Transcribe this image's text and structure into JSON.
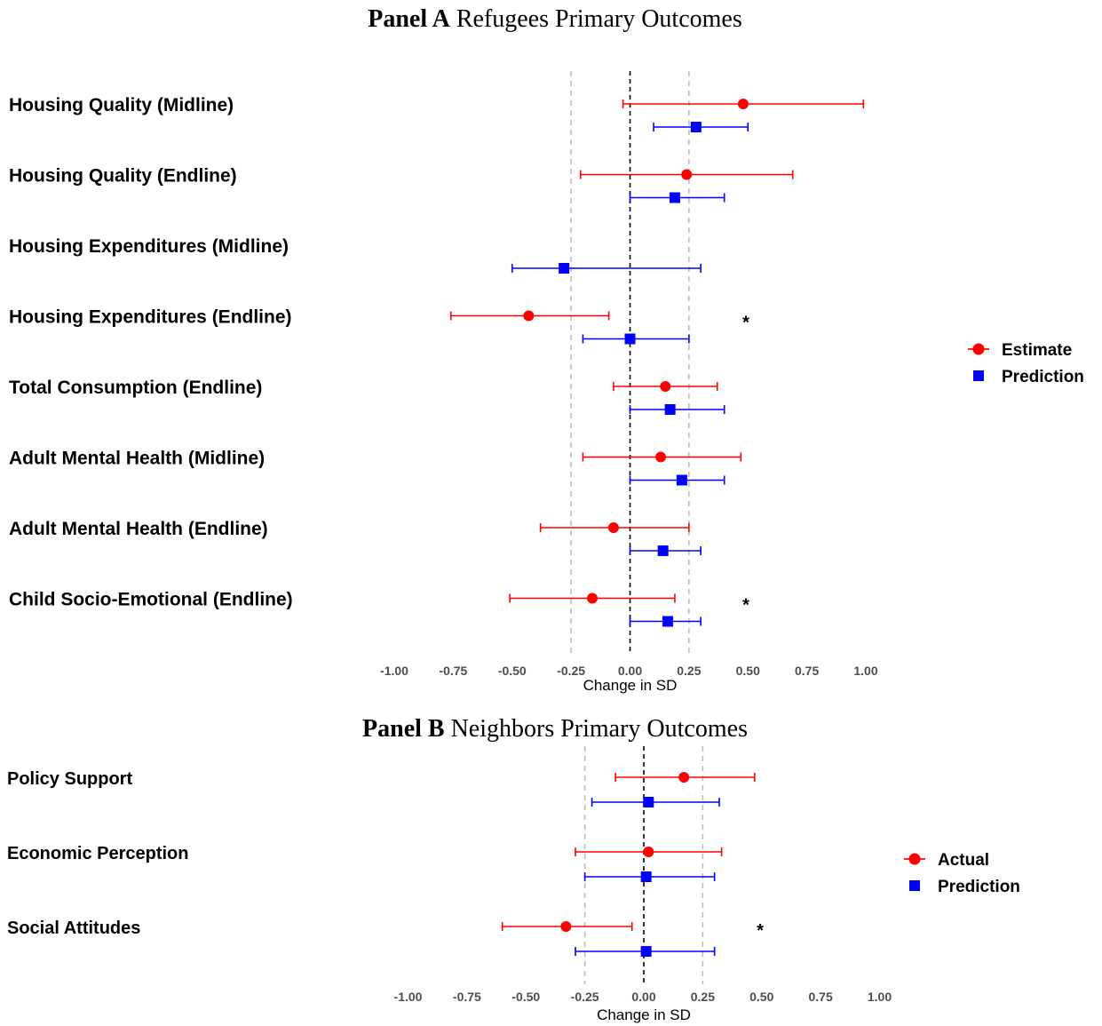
{
  "chart_data": [
    {
      "type": "forest",
      "title_bold": "Panel A",
      "title": "Refugees Primary Outcomes",
      "xlabel": "Change in SD",
      "xlim": [
        -1.0,
        1.0
      ],
      "xticks": [
        "-1.00",
        "-0.75",
        "-0.50",
        "-0.25",
        "0.00",
        "0.25",
        "0.50",
        "0.75",
        "1.00"
      ],
      "reference_lines": {
        "zero": 0.0,
        "dashed_grey": [
          -0.25,
          0.25
        ]
      },
      "grid": false,
      "legend_position": "right",
      "categories": [
        "Housing Quality (Midline)",
        "Housing Quality (Endline)",
        "Housing Expenditures (Midline)",
        "Housing Expenditures (Endline)",
        "Total Consumption (Endline)",
        "Adult Mental Health (Midline)",
        "Adult Mental Health (Endline)",
        "Child Socio-Emotional (Endline)"
      ],
      "series": [
        {
          "name": "Estimate",
          "color": "#ff0000",
          "marker": "circle",
          "values": [
            {
              "est": 0.48,
              "lo": -0.03,
              "hi": 0.99
            },
            {
              "est": 0.24,
              "lo": -0.21,
              "hi": 0.69
            },
            null,
            {
              "est": -0.43,
              "lo": -0.76,
              "hi": -0.09
            },
            {
              "est": 0.15,
              "lo": -0.07,
              "hi": 0.37
            },
            {
              "est": 0.13,
              "lo": -0.2,
              "hi": 0.47
            },
            {
              "est": -0.07,
              "lo": -0.38,
              "hi": 0.25
            },
            {
              "est": -0.16,
              "lo": -0.51,
              "hi": 0.19
            }
          ]
        },
        {
          "name": "Prediction",
          "color": "#0000ff",
          "marker": "square",
          "values": [
            {
              "est": 0.28,
              "lo": 0.1,
              "hi": 0.5
            },
            {
              "est": 0.19,
              "lo": 0.0,
              "hi": 0.4
            },
            {
              "est": -0.28,
              "lo": -0.5,
              "hi": 0.3
            },
            {
              "est": 0.0,
              "lo": -0.2,
              "hi": 0.25
            },
            {
              "est": 0.17,
              "lo": 0.0,
              "hi": 0.4
            },
            {
              "est": 0.22,
              "lo": 0.0,
              "hi": 0.4
            },
            {
              "est": 0.14,
              "lo": 0.0,
              "hi": 0.3
            },
            {
              "est": 0.16,
              "lo": 0.0,
              "hi": 0.3
            }
          ]
        }
      ],
      "annotations": [
        {
          "category_index": 3,
          "text": "*",
          "x": 0.5
        },
        {
          "category_index": 7,
          "text": "*",
          "x": 0.5
        }
      ]
    },
    {
      "type": "forest",
      "title_bold": "Panel B",
      "title": "Neighbors Primary Outcomes",
      "xlabel": "Change in SD",
      "xlim": [
        -1.0,
        1.0
      ],
      "xticks": [
        "-1.00",
        "-0.75",
        "-0.50",
        "-0.25",
        "0.00",
        "0.25",
        "0.50",
        "0.75",
        "1.00"
      ],
      "reference_lines": {
        "zero": 0.0,
        "dashed_grey": [
          -0.25,
          0.25
        ]
      },
      "grid": false,
      "legend_position": "right",
      "categories": [
        "Policy Support",
        "Economic Perception",
        "Social Attitudes"
      ],
      "series": [
        {
          "name": "Actual",
          "color": "#ff0000",
          "marker": "circle",
          "values": [
            {
              "est": 0.17,
              "lo": -0.12,
              "hi": 0.47
            },
            {
              "est": 0.02,
              "lo": -0.29,
              "hi": 0.33
            },
            {
              "est": -0.33,
              "lo": -0.6,
              "hi": -0.05
            }
          ]
        },
        {
          "name": "Prediction",
          "color": "#0000ff",
          "marker": "square",
          "values": [
            {
              "est": 0.02,
              "lo": -0.22,
              "hi": 0.32
            },
            {
              "est": 0.01,
              "lo": -0.25,
              "hi": 0.3
            },
            {
              "est": 0.01,
              "lo": -0.29,
              "hi": 0.3
            }
          ]
        }
      ],
      "annotations": [
        {
          "category_index": 2,
          "text": "*",
          "x": 0.5
        }
      ]
    }
  ]
}
